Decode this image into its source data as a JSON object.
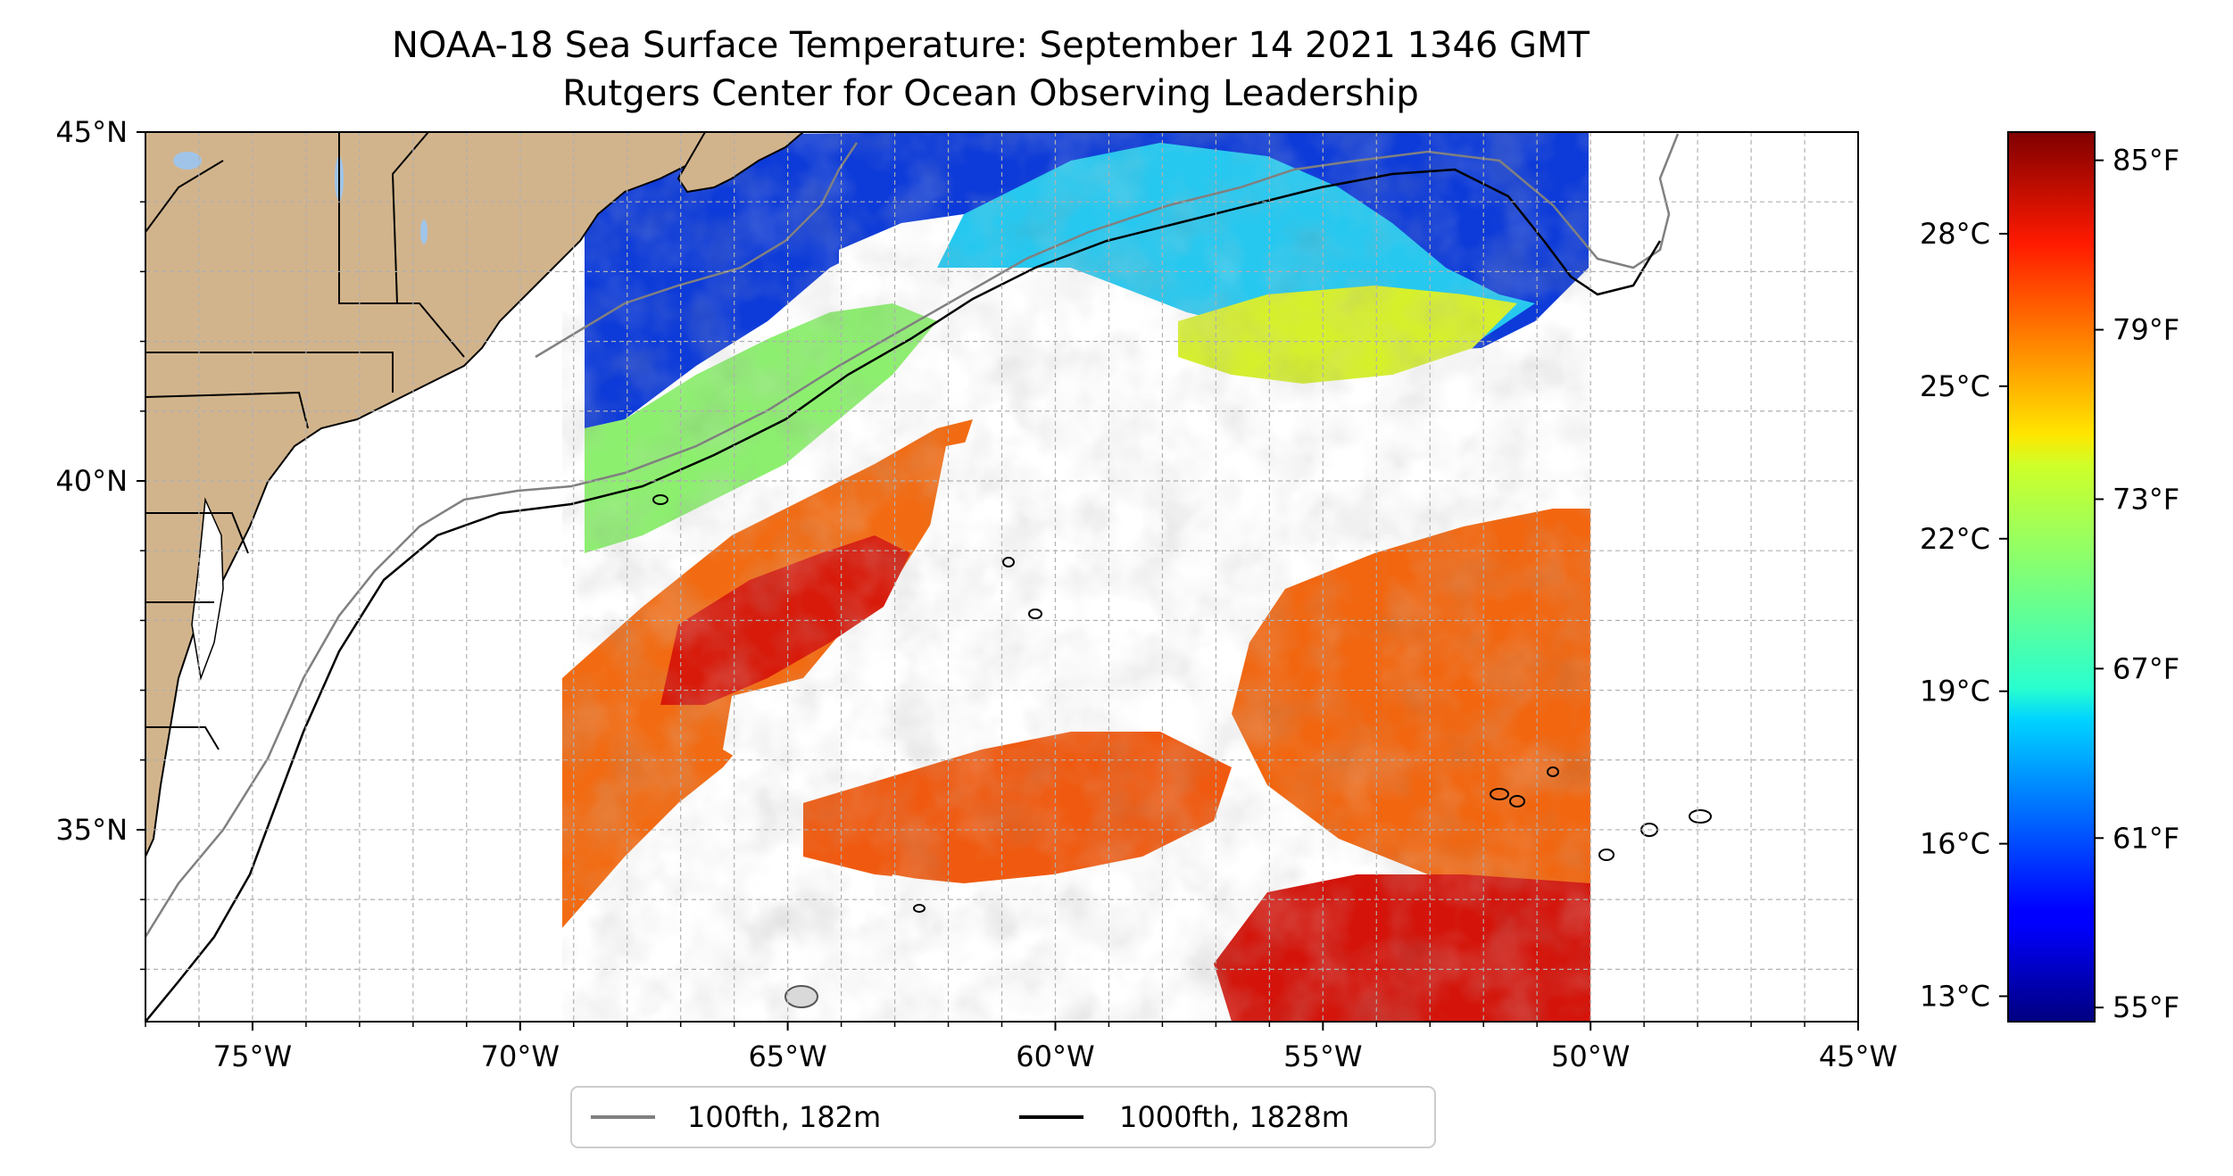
{
  "title": {
    "line1": "NOAA-18 Sea Surface Temperature: September 14 2021 1346 GMT",
    "line2": "Rutgers Center for Ocean Observing Leadership"
  },
  "map": {
    "lon_range": [
      -77,
      -45
    ],
    "lat_range": [
      32.25,
      45
    ],
    "lon_ticks": [
      {
        "value": -75,
        "label": "75°W"
      },
      {
        "value": -70,
        "label": "70°W"
      },
      {
        "value": -65,
        "label": "65°W"
      },
      {
        "value": -60,
        "label": "60°W"
      },
      {
        "value": -55,
        "label": "55°W"
      },
      {
        "value": -50,
        "label": "50°W"
      },
      {
        "value": -45,
        "label": "45°W"
      }
    ],
    "lat_ticks": [
      {
        "value": 45,
        "label": "45°N"
      },
      {
        "value": 40,
        "label": "40°N"
      },
      {
        "value": 35,
        "label": "35°N"
      }
    ],
    "grid": true,
    "colors": {
      "land": "#d2b48c",
      "lakes": "#a0c4e8",
      "contour_100": "#808080",
      "contour_1000": "#000000",
      "grid": "#b0b0b0"
    }
  },
  "legend": {
    "items": [
      {
        "label": "100fth, 182m",
        "color": "#808080"
      },
      {
        "label": "1000fth, 1828m",
        "color": "#000000"
      }
    ],
    "placement": "bottom-center"
  },
  "colorbar": {
    "colormap": "jet",
    "celsius_ticks": [
      {
        "value": 28,
        "label": "28°C"
      },
      {
        "value": 25,
        "label": "25°C"
      },
      {
        "value": 22,
        "label": "22°C"
      },
      {
        "value": 19,
        "label": "19°C"
      },
      {
        "value": 16,
        "label": "16°C"
      },
      {
        "value": 13,
        "label": "13°C"
      }
    ],
    "fahrenheit_ticks": [
      {
        "value": 85,
        "label": "85°F"
      },
      {
        "value": 79,
        "label": "79°F"
      },
      {
        "value": 73,
        "label": "73°F"
      },
      {
        "value": 67,
        "label": "67°F"
      },
      {
        "value": 61,
        "label": "61°F"
      },
      {
        "value": 55,
        "label": "55°F"
      }
    ],
    "range_f": [
      54.5,
      86
    ]
  }
}
